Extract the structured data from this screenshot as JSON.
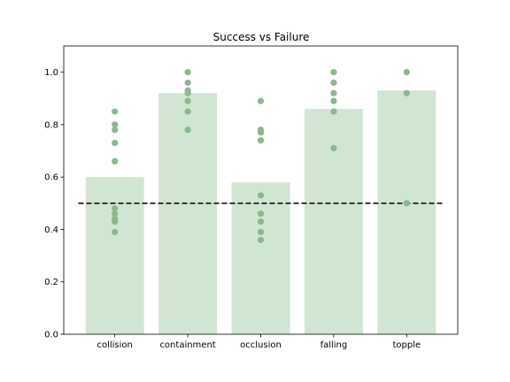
{
  "chart_data": {
    "type": "bar",
    "title": "Success vs Failure",
    "xlabel": "",
    "ylabel": "",
    "ylim": [
      0,
      1.1
    ],
    "yticks": [
      0.0,
      0.2,
      0.4,
      0.6,
      0.8,
      1.0
    ],
    "ytick_labels": [
      "0.0",
      "0.2",
      "0.4",
      "0.6",
      "0.8",
      "1.0"
    ],
    "categories": [
      "collision",
      "containment",
      "occlusion",
      "falling",
      "topple"
    ],
    "values": [
      0.6,
      0.92,
      0.58,
      0.86,
      0.93
    ],
    "points": [
      [
        0.85,
        0.8,
        0.78,
        0.73,
        0.66,
        0.48,
        0.46,
        0.44,
        0.43,
        0.39
      ],
      [
        1.0,
        0.96,
        0.93,
        0.92,
        0.89,
        0.85,
        0.78
      ],
      [
        0.89,
        0.78,
        0.77,
        0.74,
        0.53,
        0.46,
        0.43,
        0.39,
        0.36
      ],
      [
        1.0,
        0.96,
        0.92,
        0.89,
        0.85,
        0.71
      ],
      [
        1.0,
        0.92,
        0.5
      ]
    ],
    "reference_line": 0.5,
    "grid": false,
    "colors": {
      "bar": "#d1e5d3",
      "point": "#8ab98c",
      "reference": "#000000",
      "axis": "#000000"
    }
  }
}
